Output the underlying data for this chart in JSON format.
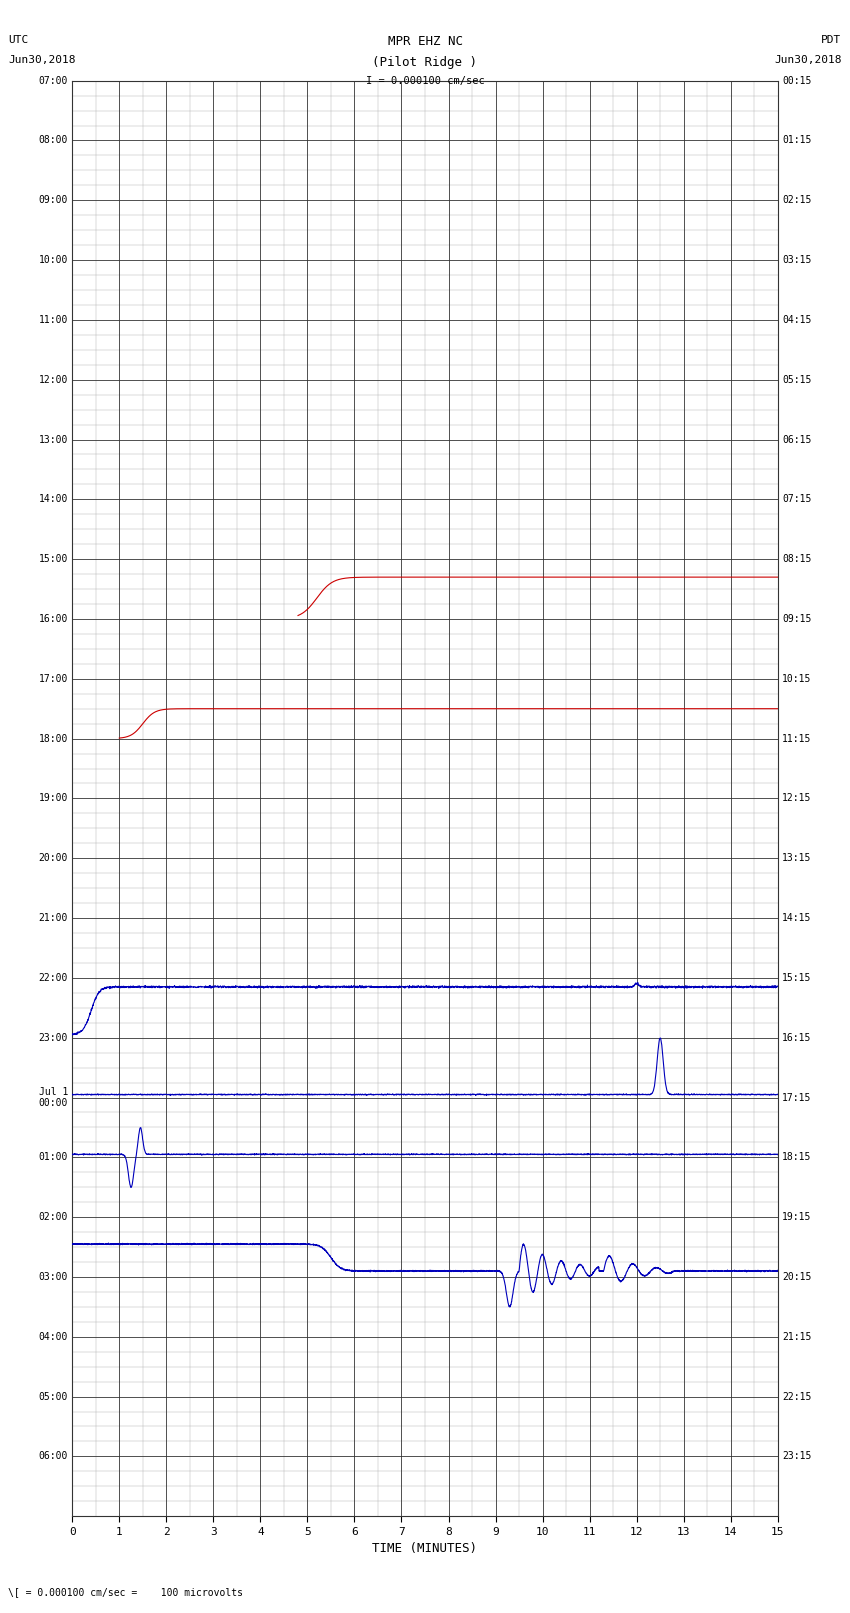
{
  "title_line1": "MPR EHZ NC",
  "title_line2": "(Pilot Ridge )",
  "title_line3": "I = 0.000100 cm/sec",
  "footer": "\\[ = 0.000100 cm/sec =    100 microvolts",
  "xlabel": "TIME (MINUTES)",
  "utc_labels": [
    "07:00",
    "08:00",
    "09:00",
    "10:00",
    "11:00",
    "12:00",
    "13:00",
    "14:00",
    "15:00",
    "16:00",
    "17:00",
    "18:00",
    "19:00",
    "20:00",
    "21:00",
    "22:00",
    "23:00",
    "Jul 1\n00:00",
    "01:00",
    "02:00",
    "03:00",
    "04:00",
    "05:00",
    "06:00"
  ],
  "pdt_labels": [
    "00:15",
    "01:15",
    "02:15",
    "03:15",
    "04:15",
    "05:15",
    "06:15",
    "07:15",
    "08:15",
    "09:15",
    "10:15",
    "11:15",
    "12:15",
    "13:15",
    "14:15",
    "15:15",
    "16:15",
    "17:15",
    "18:15",
    "19:15",
    "20:15",
    "21:15",
    "22:15",
    "23:15"
  ],
  "n_rows": 24,
  "x_min": 0,
  "x_max": 15,
  "x_ticks": [
    0,
    1,
    2,
    3,
    4,
    5,
    6,
    7,
    8,
    9,
    10,
    11,
    12,
    13,
    14,
    15
  ],
  "major_grid_color": "#333333",
  "minor_grid_color": "#aaaaaa",
  "bg_color": "#ffffff",
  "trace_color_blue": "#0000bb",
  "trace_color_red": "#cc0000",
  "fig_width": 8.5,
  "fig_height": 16.13
}
